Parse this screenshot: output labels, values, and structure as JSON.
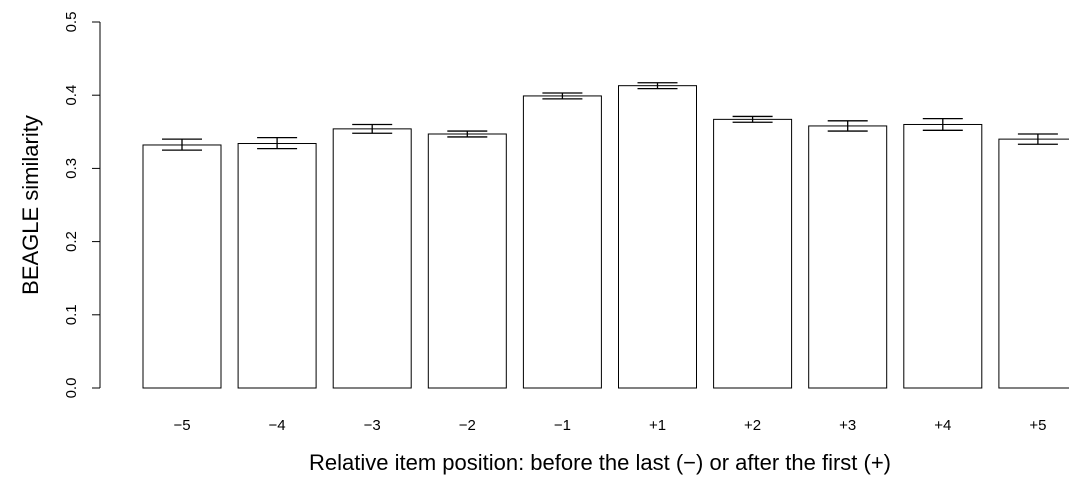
{
  "chart_data": {
    "type": "bar",
    "categories": [
      "−5",
      "−4",
      "−3",
      "−2",
      "−1",
      "+1",
      "+2",
      "+3",
      "+4",
      "+5"
    ],
    "values": [
      0.332,
      0.334,
      0.354,
      0.347,
      0.399,
      0.413,
      0.367,
      0.358,
      0.36,
      0.34
    ],
    "error_low": [
      0.325,
      0.327,
      0.348,
      0.343,
      0.395,
      0.409,
      0.363,
      0.351,
      0.352,
      0.333
    ],
    "error_high": [
      0.34,
      0.342,
      0.36,
      0.351,
      0.403,
      0.417,
      0.371,
      0.365,
      0.368,
      0.347
    ],
    "ylim": [
      0,
      0.5
    ],
    "yticks": [
      "0.0",
      "0.1",
      "0.2",
      "0.3",
      "0.4",
      "0.5"
    ],
    "xlabel": "Relative item position: before the last (−) or after the first (+)",
    "ylabel": "BEAGLE similarity",
    "grid": false,
    "bar_fill": "#ffffff",
    "bar_stroke": "#000000"
  }
}
